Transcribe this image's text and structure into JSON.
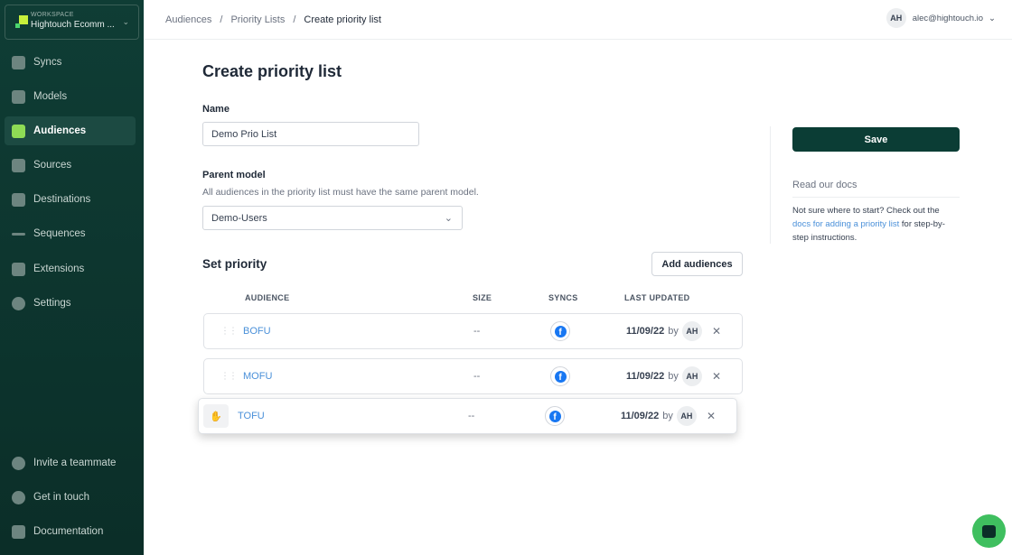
{
  "workspace": {
    "label": "WORKSPACE",
    "name": "Hightouch Ecomm ..."
  },
  "nav": [
    {
      "label": "Syncs",
      "icon": "syncs-icon"
    },
    {
      "label": "Models",
      "icon": "models-icon"
    },
    {
      "label": "Audiences",
      "icon": "audiences-icon",
      "active": true
    },
    {
      "label": "Sources",
      "icon": "database-icon"
    },
    {
      "label": "Destinations",
      "icon": "grid-icon"
    },
    {
      "label": "Sequences",
      "icon": "dots-arrow-icon"
    },
    {
      "label": "Extensions",
      "icon": "briefcase-icon"
    },
    {
      "label": "Settings",
      "icon": "gear-icon"
    }
  ],
  "nav_bottom": [
    {
      "label": "Invite a teammate"
    },
    {
      "label": "Get in touch"
    },
    {
      "label": "Documentation"
    }
  ],
  "breadcrumb": [
    "Audiences",
    "Priority Lists",
    "Create priority list"
  ],
  "user": {
    "initials": "AH",
    "email": "alec@hightouch.io"
  },
  "title": "Create priority list",
  "name_field": {
    "label": "Name",
    "value": "Demo Prio List"
  },
  "parent_model": {
    "label": "Parent model",
    "help": "All audiences in the priority list must have the same parent model.",
    "value": "Demo-Users"
  },
  "set_priority": {
    "title": "Set priority",
    "add_label": "Add audiences"
  },
  "columns": [
    "AUDIENCE",
    "SIZE",
    "SYNCS",
    "LAST UPDATED"
  ],
  "rows": [
    {
      "name": "BOFU",
      "size": "--",
      "date": "11/09/22",
      "by": "by",
      "initials": "AH"
    },
    {
      "name": "MOFU",
      "size": "--",
      "date": "11/09/22",
      "by": "by",
      "initials": "AH"
    },
    {
      "name": "TOFU",
      "size": "--",
      "date": "11/09/22",
      "by": "by",
      "initials": "AH",
      "dragging": true
    }
  ],
  "save_label": "Save",
  "docs": {
    "heading": "Read our docs",
    "pre": "Not sure where to start? Check out the ",
    "link": "docs for adding a priority list",
    "post": " for step-by-step instructions."
  },
  "colors": {
    "sidebar": "#0f3d35",
    "primary": "#0b3d35",
    "link": "#4a90d9",
    "facebook": "#1877f2",
    "chat": "#3fbf5f"
  }
}
